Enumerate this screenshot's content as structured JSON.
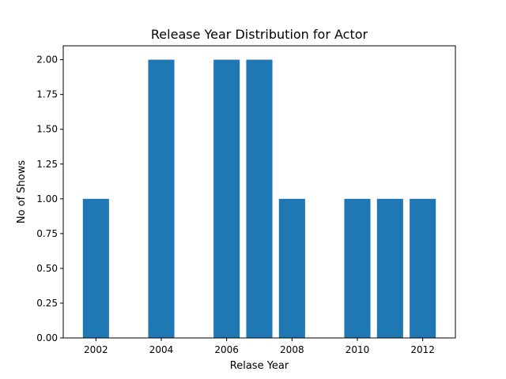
{
  "chart_data": {
    "type": "bar",
    "title": "Release Year Distribution for Actor",
    "xlabel": "Relase Year",
    "ylabel": "No of Shows",
    "x": [
      2002,
      2004,
      2006,
      2007,
      2008,
      2010,
      2011,
      2012
    ],
    "values": [
      1,
      2,
      2,
      2,
      1,
      1,
      1,
      1
    ],
    "xlim": [
      2001.0,
      2013.0
    ],
    "ylim": [
      0,
      2.1
    ],
    "xticks": [
      "2002",
      "2004",
      "2006",
      "2008",
      "2010",
      "2012"
    ],
    "yticks": [
      "0.00",
      "0.25",
      "0.50",
      "0.75",
      "1.00",
      "1.25",
      "1.50",
      "1.75",
      "2.00"
    ],
    "bar_color": "#1f77b4",
    "grid": false,
    "legend": "none"
  }
}
